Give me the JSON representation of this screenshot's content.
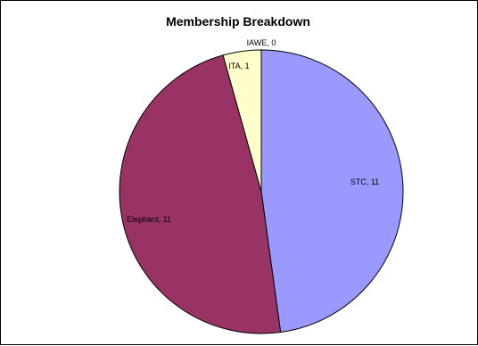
{
  "chart_data": {
    "type": "pie",
    "title": "Membership Breakdown",
    "slices": [
      {
        "label": "STC",
        "value": 11,
        "display": "STC, 11",
        "color": "#9999ff"
      },
      {
        "label": "Elephant",
        "value": 11,
        "display": "Elephant, 11",
        "color": "#993366"
      },
      {
        "label": "ITA",
        "value": 1,
        "display": "ITA, 1",
        "color": "#ffffcc"
      },
      {
        "label": "IAWE",
        "value": 0,
        "display": "IAWE, 0",
        "color": "#ccffff"
      }
    ]
  }
}
